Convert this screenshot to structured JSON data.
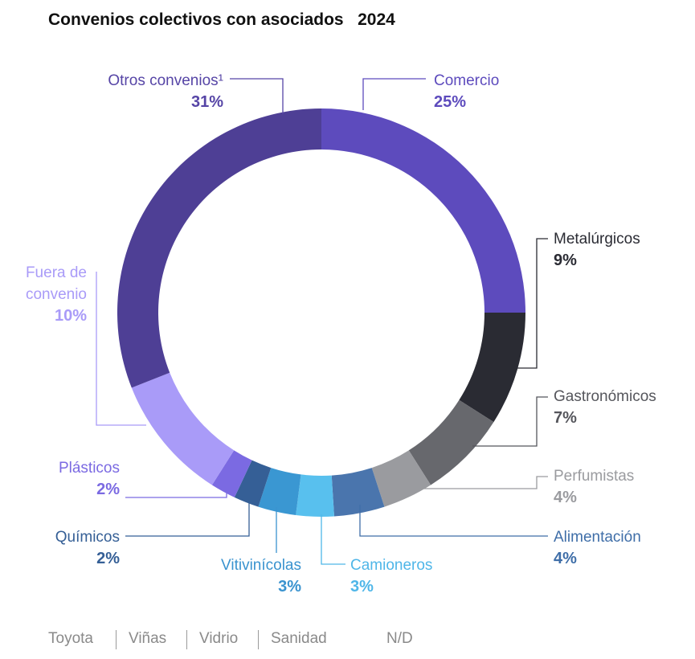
{
  "chart_data": {
    "type": "pie",
    "title": "Convenios colectivos con asociados   2024",
    "slices": [
      {
        "name": "Comercio",
        "value": 25,
        "label": "25%",
        "color": "#5d4bbd"
      },
      {
        "name": "Metalúrgicos",
        "value": 9,
        "label": "9%",
        "color": "#2a2b33"
      },
      {
        "name": "Gastronómicos",
        "value": 7,
        "label": "7%",
        "color": "#67686d"
      },
      {
        "name": "Perfumistas",
        "value": 4,
        "label": "4%",
        "color": "#9a9b9f"
      },
      {
        "name": "Alimentación",
        "value": 4,
        "label": "4%",
        "color": "#4a75ad"
      },
      {
        "name": "Camioneros",
        "value": 3,
        "label": "3%",
        "color": "#58c0ee"
      },
      {
        "name": "Vitivinícolas",
        "value": 3,
        "label": "3%",
        "color": "#3a97d2"
      },
      {
        "name": "Químicos",
        "value": 2,
        "label": "2%",
        "color": "#355f96"
      },
      {
        "name": "Plásticos",
        "value": 2,
        "label": "2%",
        "color": "#7b6ae2"
      },
      {
        "name": "Fuera de convenio",
        "value": 10,
        "label": "10%",
        "color": "#a99bf8"
      },
      {
        "name": "Otros convenios¹",
        "value": 31,
        "label": "31%",
        "color": "#4e3f95"
      }
    ],
    "labels": {
      "comercio": {
        "name": "Comercio",
        "pct": "25%",
        "color": "#5d4bbd"
      },
      "metalurgicos": {
        "name": "Metalúrgicos",
        "pct": "9%",
        "color": "#2a2b33"
      },
      "gastronomicos": {
        "name": "Gastronómicos",
        "pct": "7%",
        "color": "#55565c"
      },
      "perfumistas": {
        "name": "Perfumistas",
        "pct": "4%",
        "color": "#9a9b9f"
      },
      "alimentacion": {
        "name": "Alimentación",
        "pct": "4%",
        "color": "#3f6ea8"
      },
      "camioneros": {
        "name": "Camioneros",
        "pct": "3%",
        "color": "#4fb6e8"
      },
      "vitivinicolas": {
        "name": "Vitivinícolas",
        "pct": "3%",
        "color": "#3a93cf"
      },
      "quimicos": {
        "name": "Químicos",
        "pct": "2%",
        "color": "#355f96"
      },
      "plasticos": {
        "name": "Plásticos",
        "pct": "2%",
        "color": "#7b6ae2"
      },
      "fuera_line1": "Fuera de",
      "fuera_line2": "convenio",
      "fuera_pct": "10%",
      "fuera_color": "#a99bf8",
      "otros": {
        "name": "Otros convenios¹",
        "pct": "31%",
        "color": "#5645a6"
      }
    },
    "footer": [
      "Toyota",
      "Viñas",
      "Vidrio",
      "Sanidad",
      "N/D"
    ]
  }
}
